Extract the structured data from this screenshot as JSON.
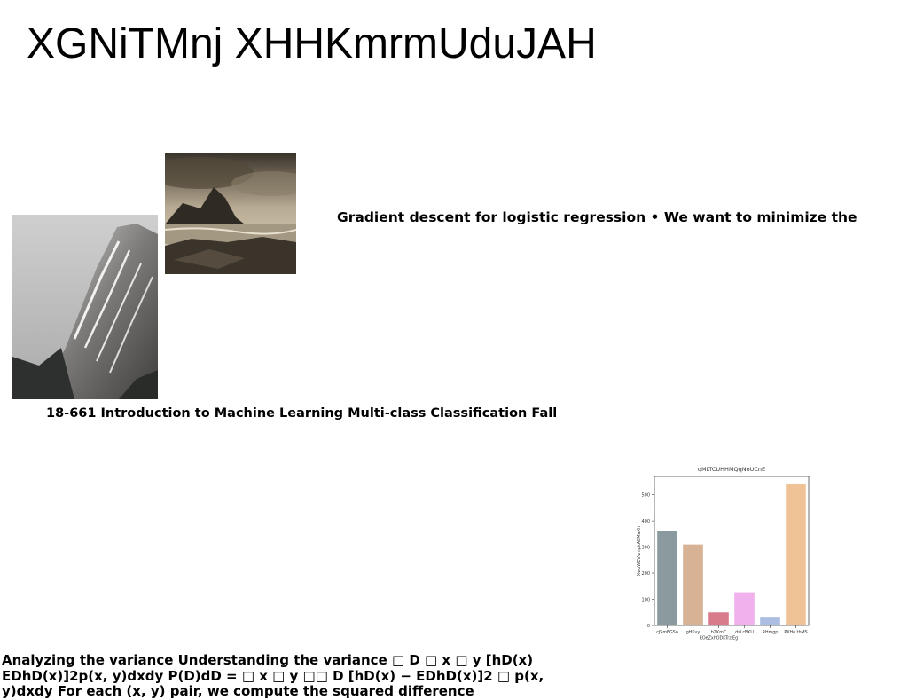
{
  "page": {
    "title": "XGNiTMnj XHHKmrmUduJAH",
    "text_line_1": "Gradient descent for logistic regression • We want to minimize the",
    "text_line_2": "18-661 Introduction to Machine Learning Multi-class Classification Fall",
    "paragraph": "Analyzing the variance Understanding the variance □ D □ x □ y [hD(x) EDhD(x)]2p(x, y)dxdy P(D)dD = □ x □ y □□ D [hD(x) − EDhD(x)]2 □ p(x, y)dxdy For each (x, y) pair, we compute the squared difference"
  },
  "images": [
    {
      "name": "mountain-peak-photo",
      "subject": "snow-streaked mountain ridge"
    },
    {
      "name": "coastal-rocks-photo",
      "subject": "sepia rocky coastline under clouds"
    }
  ],
  "chart_data": {
    "type": "bar",
    "title": "qMLTCUHHMQqNoUCnE",
    "xlabel": "",
    "ylabel": "XwoWEVvmpkAEMaXh",
    "categories": [
      "cJSmEGSo",
      "gHKvy",
      "bZKmC EOeZxhODKTrzlEg",
      "dsLcBKU",
      "RHmgp",
      "PXHo tbMS"
    ],
    "category_lines": [
      [
        "cJSmEGSo"
      ],
      [
        "gHKvy"
      ],
      [
        "bZKmC",
        "EOeZxhODKTrzlEg"
      ],
      [
        "dsLcBKU"
      ],
      [
        "RHmgp"
      ],
      [
        "PXHo tbMS"
      ]
    ],
    "values": [
      360,
      310,
      50,
      127,
      30,
      543
    ],
    "colors": [
      "#8a9a9e",
      "#d7b294",
      "#d87b8b",
      "#f0b1ec",
      "#abbde0",
      "#f0c396"
    ],
    "yticks": [
      0,
      100,
      200,
      300,
      400,
      500
    ],
    "ylim": [
      0,
      570
    ],
    "grid": false,
    "legend": "none"
  }
}
